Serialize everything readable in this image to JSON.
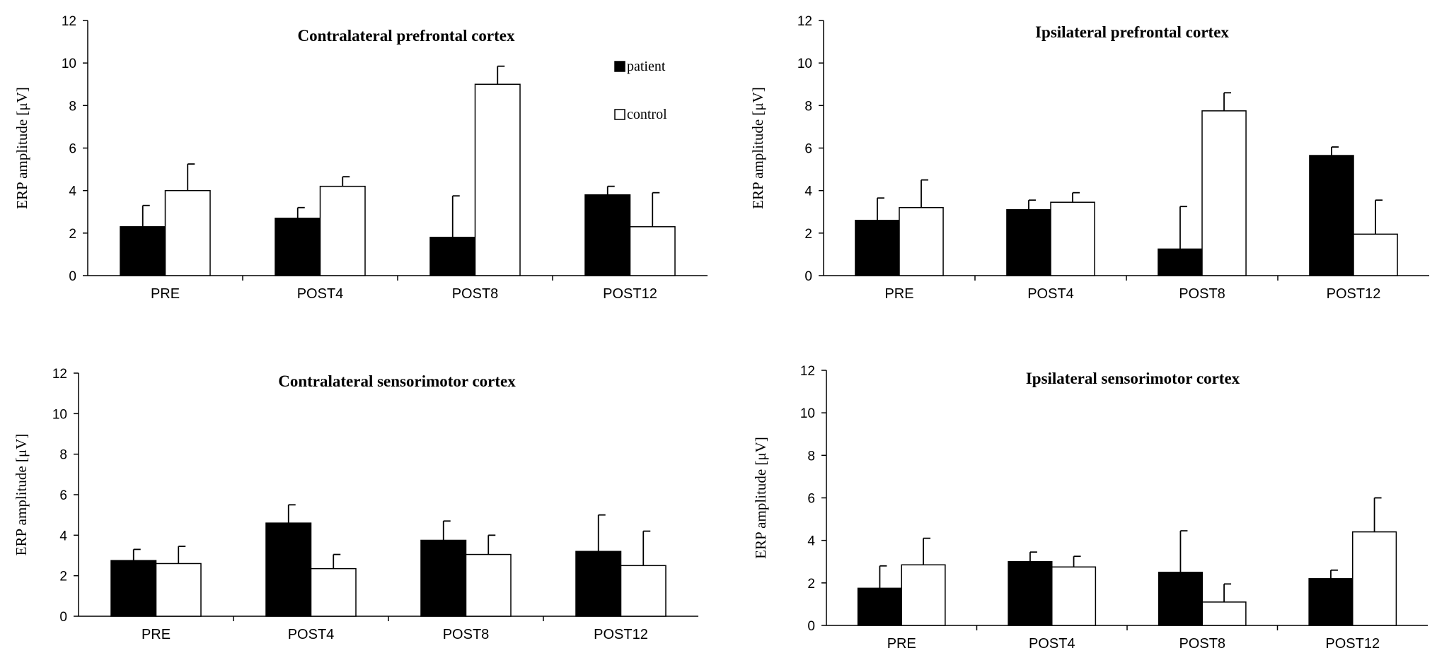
{
  "chart_data": [
    {
      "type": "bar",
      "title": "Contralateral prefrontal cortex",
      "ylabel": "ERP amplitude [μV]",
      "xlabel": "",
      "ylim": [
        0,
        12
      ],
      "yticks": [
        0,
        2,
        4,
        6,
        8,
        10,
        12
      ],
      "categories": [
        "PRE",
        "POST4",
        "POST8",
        "POST12"
      ],
      "series": [
        {
          "name": "patient",
          "color": "#000000",
          "values": [
            2.3,
            2.7,
            1.8,
            3.8
          ],
          "errors": [
            1.0,
            0.5,
            1.95,
            0.4
          ]
        },
        {
          "name": "control",
          "color": "#ffffff",
          "values": [
            4.0,
            4.2,
            9.0,
            2.3
          ],
          "errors": [
            1.25,
            0.45,
            0.85,
            1.6
          ]
        }
      ],
      "legend": {
        "entries": [
          "patient",
          "control"
        ],
        "placement": "top-right"
      }
    },
    {
      "type": "bar",
      "title": "Ipsilateral prefrontal cortex",
      "ylabel": "ERP amplitude [μV]",
      "xlabel": "",
      "ylim": [
        0,
        12
      ],
      "yticks": [
        0,
        2,
        4,
        6,
        8,
        10,
        12
      ],
      "categories": [
        "PRE",
        "POST4",
        "POST8",
        "POST12"
      ],
      "series": [
        {
          "name": "patient",
          "color": "#000000",
          "values": [
            2.6,
            3.1,
            1.25,
            5.65
          ],
          "errors": [
            1.05,
            0.45,
            2.0,
            0.4
          ]
        },
        {
          "name": "control",
          "color": "#ffffff",
          "values": [
            3.2,
            3.45,
            7.75,
            1.95
          ],
          "errors": [
            1.3,
            0.45,
            0.85,
            1.6
          ]
        }
      ]
    },
    {
      "type": "bar",
      "title": "Contralateral sensorimotor cortex",
      "ylabel": "ERP amplitude [μV]",
      "xlabel": "",
      "ylim": [
        0,
        12
      ],
      "yticks": [
        0,
        2,
        4,
        6,
        8,
        10,
        12
      ],
      "categories": [
        "PRE",
        "POST4",
        "POST8",
        "POST12"
      ],
      "series": [
        {
          "name": "patient",
          "color": "#000000",
          "values": [
            2.75,
            4.6,
            3.75,
            3.2
          ],
          "errors": [
            0.55,
            0.9,
            0.95,
            1.8
          ]
        },
        {
          "name": "control",
          "color": "#ffffff",
          "values": [
            2.6,
            2.35,
            3.05,
            2.5
          ],
          "errors": [
            0.85,
            0.7,
            0.95,
            1.7
          ]
        }
      ]
    },
    {
      "type": "bar",
      "title": "Ipsilateral sensorimotor cortex",
      "ylabel": "ERP amplitude [μV]",
      "xlabel": "",
      "ylim": [
        0,
        12
      ],
      "yticks": [
        0,
        2,
        4,
        6,
        8,
        10,
        12
      ],
      "categories": [
        "PRE",
        "POST4",
        "POST8",
        "POST12"
      ],
      "series": [
        {
          "name": "patient",
          "color": "#000000",
          "values": [
            1.75,
            3.0,
            2.5,
            2.2
          ],
          "errors": [
            1.05,
            0.45,
            1.95,
            0.4
          ]
        },
        {
          "name": "control",
          "color": "#ffffff",
          "values": [
            2.85,
            2.75,
            1.1,
            4.4
          ],
          "errors": [
            1.25,
            0.5,
            0.85,
            1.6
          ]
        }
      ]
    }
  ]
}
